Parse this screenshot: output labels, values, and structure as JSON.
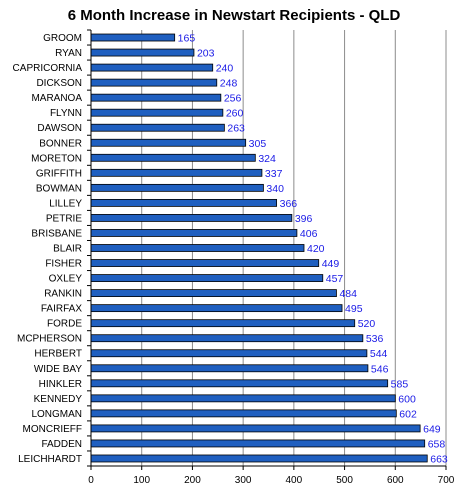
{
  "chart_data": {
    "type": "bar",
    "orientation": "horizontal",
    "title": "6 Month Increase in Newstart Recipients - QLD",
    "xlabel": "",
    "ylabel": "",
    "xlim": [
      0,
      700
    ],
    "x_ticks": [
      "0",
      "100",
      "200",
      "300",
      "400",
      "500",
      "600",
      "700"
    ],
    "grid": "vertical",
    "legend": "none",
    "bar_color": "#1f5fc0",
    "label_color": "#1a1ae6",
    "categories": [
      "GROOM",
      "RYAN",
      "CAPRICORNIA",
      "DICKSON",
      "MARANOA",
      "FLYNN",
      "DAWSON",
      "BONNER",
      "MORETON",
      "GRIFFITH",
      "BOWMAN",
      "LILLEY",
      "PETRIE",
      "BRISBANE",
      "BLAIR",
      "FISHER",
      "OXLEY",
      "RANKIN",
      "FAIRFAX",
      "FORDE",
      "MCPHERSON",
      "HERBERT",
      "WIDE BAY",
      "HINKLER",
      "KENNEDY",
      "LONGMAN",
      "MONCRIEFF",
      "FADDEN",
      "LEICHHARDT"
    ],
    "values": [
      165,
      203,
      240,
      248,
      256,
      260,
      263,
      305,
      324,
      337,
      340,
      366,
      396,
      406,
      420,
      449,
      457,
      484,
      495,
      520,
      536,
      544,
      546,
      585,
      600,
      602,
      649,
      658,
      663
    ]
  }
}
